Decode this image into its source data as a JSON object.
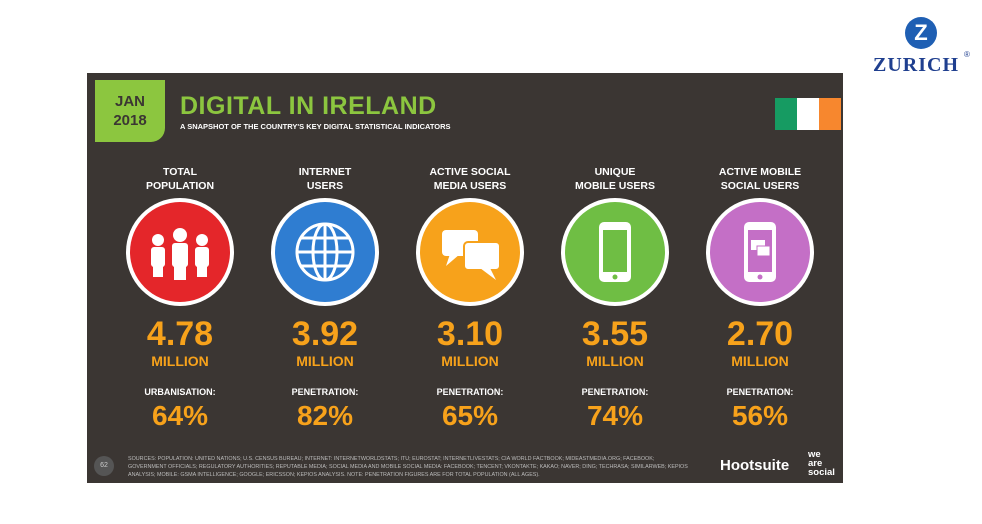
{
  "brand": {
    "name": "ZURICH",
    "mark": "Z",
    "registered": "®"
  },
  "slide": {
    "date": {
      "month": "JAN",
      "year": "2018"
    },
    "title": "DIGITAL IN IRELAND",
    "subtitle": "A SNAPSHOT OF THE COUNTRY'S KEY DIGITAL STATISTICAL INDICATORS",
    "columns": [
      {
        "label": "TOTAL\nPOPULATION",
        "value": "4.78",
        "unit": "MILLION",
        "sub_label": "URBANISATION:",
        "sub_value": "64%"
      },
      {
        "label": "INTERNET\nUSERS",
        "value": "3.92",
        "unit": "MILLION",
        "sub_label": "PENETRATION:",
        "sub_value": "82%"
      },
      {
        "label": "ACTIVE SOCIAL\nMEDIA USERS",
        "value": "3.10",
        "unit": "MILLION",
        "sub_label": "PENETRATION:",
        "sub_value": "65%"
      },
      {
        "label": "UNIQUE\nMOBILE USERS",
        "value": "3.55",
        "unit": "MILLION",
        "sub_label": "PENETRATION:",
        "sub_value": "74%"
      },
      {
        "label": "ACTIVE MOBILE\nSOCIAL USERS",
        "value": "2.70",
        "unit": "MILLION",
        "sub_label": "PENETRATION:",
        "sub_value": "56%"
      }
    ],
    "page_number": "62",
    "sources": "SOURCES: POPULATION: UNITED NATIONS; U.S. CENSUS BUREAU; INTERNET: INTERNETWORLDSTATS; ITU; EUROSTAT; INTERNETLIVESTATS; CIA WORLD FACTBOOK; MIDEASTMEDIA.ORG; FACEBOOK; GOVERNMENT OFFICIALS; REGULATORY AUTHORITIES; REPUTABLE MEDIA; SOCIAL MEDIA AND MOBILE SOCIAL MEDIA: FACEBOOK; TENCENT; VKONTAKTE; KAKAO; NAVER; DING; TECHRASA; SIMILARWEB; KEPIOS ANALYSIS; MOBILE: GSMA INTELLIGENCE; GOOGLE; ERICSSON; KEPIOS ANALYSIS. NOTE: PENETRATION FIGURES ARE FOR TOTAL POPULATION (ALL AGES).",
    "footer_brand_1": "Hootsuite",
    "footer_brand_2": "we\nare\nsocial"
  }
}
